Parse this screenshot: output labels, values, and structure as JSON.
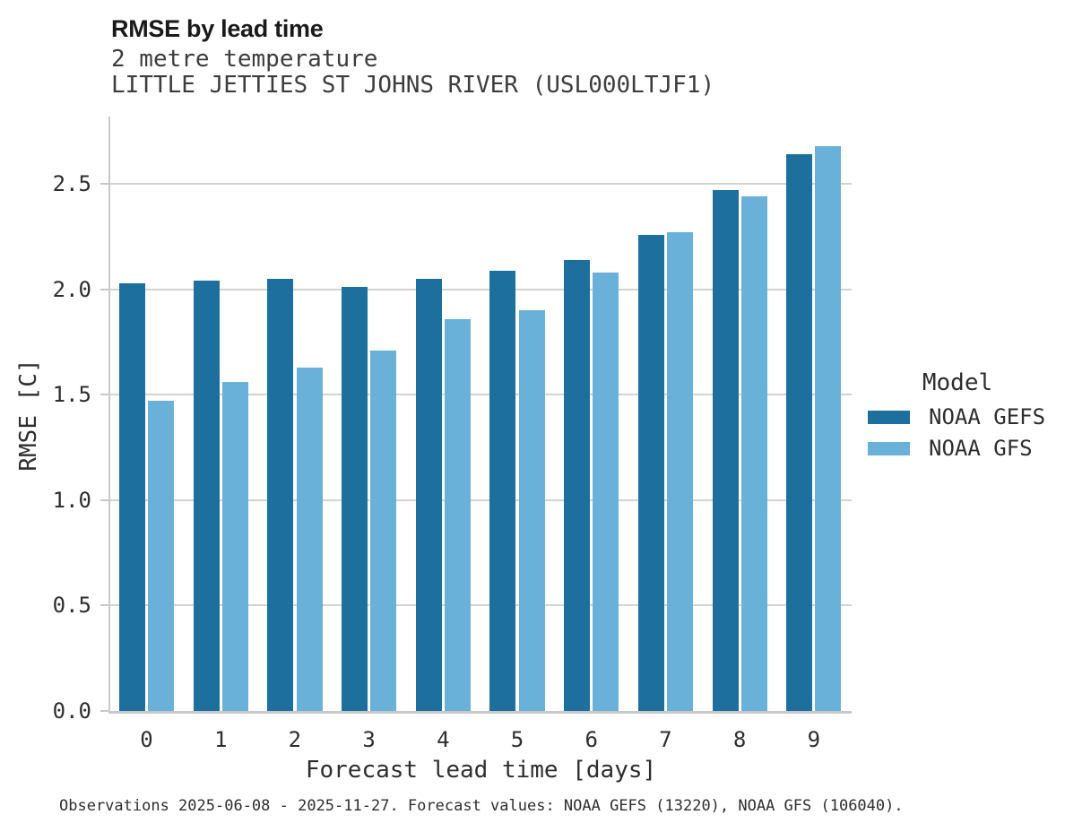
{
  "title": "RMSE by lead time",
  "subtitle1": "2 metre temperature",
  "subtitle2": "LITTLE JETTIES ST JOHNS RIVER (USL000LTJF1)",
  "footer": "Observations 2025-06-08 - 2025-11-27. Forecast values: NOAA GEFS (13220), NOAA GFS (106040).",
  "colors": {
    "gefs_dark_blue": "#1d6f9e",
    "gfs_light_blue": "#6ab1d9",
    "gridline": "#d3d3d3",
    "axis_spine": "#c8c8c8"
  },
  "legend": {
    "title": "Model",
    "entries": [
      {
        "label": "NOAA GEFS",
        "color": "#1d6f9e"
      },
      {
        "label": "NOAA GFS",
        "color": "#6ab1d9"
      }
    ],
    "position": "right"
  },
  "chart_data": {
    "type": "bar",
    "title": "RMSE by lead time",
    "subtitle": "2 metre temperature — LITTLE JETTIES ST JOHNS RIVER (USL000LTJF1)",
    "xlabel": "Forecast lead time [days]",
    "ylabel": "RMSE [C]",
    "categories": [
      "0",
      "1",
      "2",
      "3",
      "4",
      "5",
      "6",
      "7",
      "8",
      "9"
    ],
    "series": [
      {
        "name": "NOAA GEFS",
        "color": "#1d6f9e",
        "values": [
          2.03,
          2.04,
          2.05,
          2.01,
          2.05,
          2.09,
          2.14,
          2.26,
          2.47,
          2.64
        ]
      },
      {
        "name": "NOAA GFS",
        "color": "#6ab1d9",
        "values": [
          1.47,
          1.56,
          1.63,
          1.71,
          1.86,
          1.9,
          2.08,
          2.27,
          2.44,
          2.68
        ]
      }
    ],
    "ylim": [
      0,
      2.82
    ],
    "yticks": [
      0.0,
      0.5,
      1.0,
      1.5,
      2.0,
      2.5
    ],
    "grid": true,
    "legend_position": "right"
  }
}
